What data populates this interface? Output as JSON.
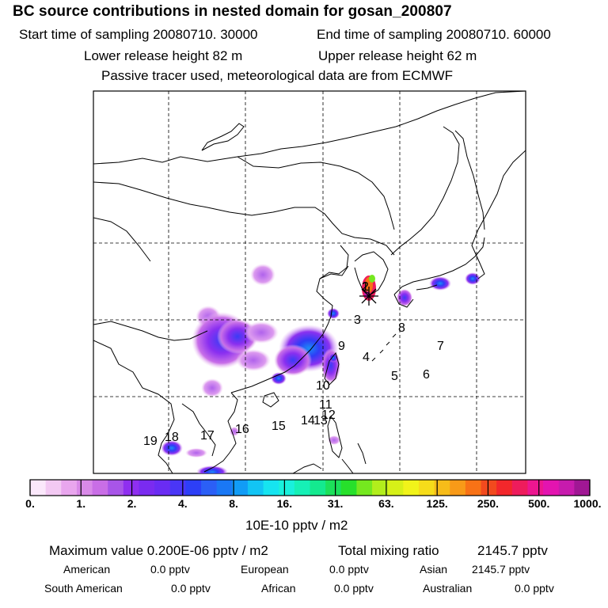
{
  "header": {
    "title": "BC  source contributions in nested domain for gosan_200807",
    "start_label": "Start time of sampling 20080710. 30000",
    "end_label": "End time of sampling 20080710. 60000",
    "lower_label": "Lower release height   82 m",
    "upper_label": "Upper release height   62 m",
    "note": "Passive tracer used, meteorological data are from ECMWF"
  },
  "map": {
    "region_labels": [
      "1",
      "2",
      "3",
      "4",
      "5",
      "6",
      "7",
      "8",
      "9",
      "10",
      "11",
      "12",
      "13",
      "14",
      "15",
      "16",
      "17",
      "18",
      "19"
    ],
    "receptor_marker": "receptor-star-icon"
  },
  "colorbar": {
    "tick_labels": [
      "0.",
      "1.",
      "2.",
      "4.",
      "8.",
      "16.",
      "31.",
      "63.",
      "125.",
      "250.",
      "500.",
      "1000."
    ],
    "unit": "10E-10 pptv / m2",
    "colors": [
      "#fbe8fb",
      "#f3c9f3",
      "#e9a6ee",
      "#d98ae8",
      "#c96ee6",
      "#a855e8",
      "#8f2ff0",
      "#7a2bf0",
      "#6a2cf3",
      "#4a36f6",
      "#2d3ff7",
      "#2b5ff6",
      "#1a78f5",
      "#119cf6",
      "#12c4f4",
      "#16e4f0",
      "#19f0dc",
      "#16f0b6",
      "#14e98f",
      "#1ce05a",
      "#27e02b",
      "#75e81f",
      "#b2ee1c",
      "#d6f018",
      "#f1f31a",
      "#f6dc1a",
      "#f7bc19",
      "#f89a18",
      "#f87216",
      "#f24a1e",
      "#f3272b",
      "#ee1c5c",
      "#ec1690",
      "#e314b0",
      "#c71bad",
      "#a01794"
    ]
  },
  "stats": {
    "max_label": "Maximum value  0.200E-06 pptv / m2",
    "total_label": "Total mixing ratio",
    "total_value": "2145.7 pptv",
    "american_label": "American",
    "american_value": "0.0 pptv",
    "european_label": "European",
    "european_value": "0.0 pptv",
    "asian_label": "Asian",
    "asian_value": "2145.7 pptv",
    "south_american_label": "South American",
    "south_american_value": "0.0 pptv",
    "african_label": "African",
    "african_value": "0.0 pptv",
    "australian_label": "Australian",
    "australian_value": "0.0 pptv"
  }
}
